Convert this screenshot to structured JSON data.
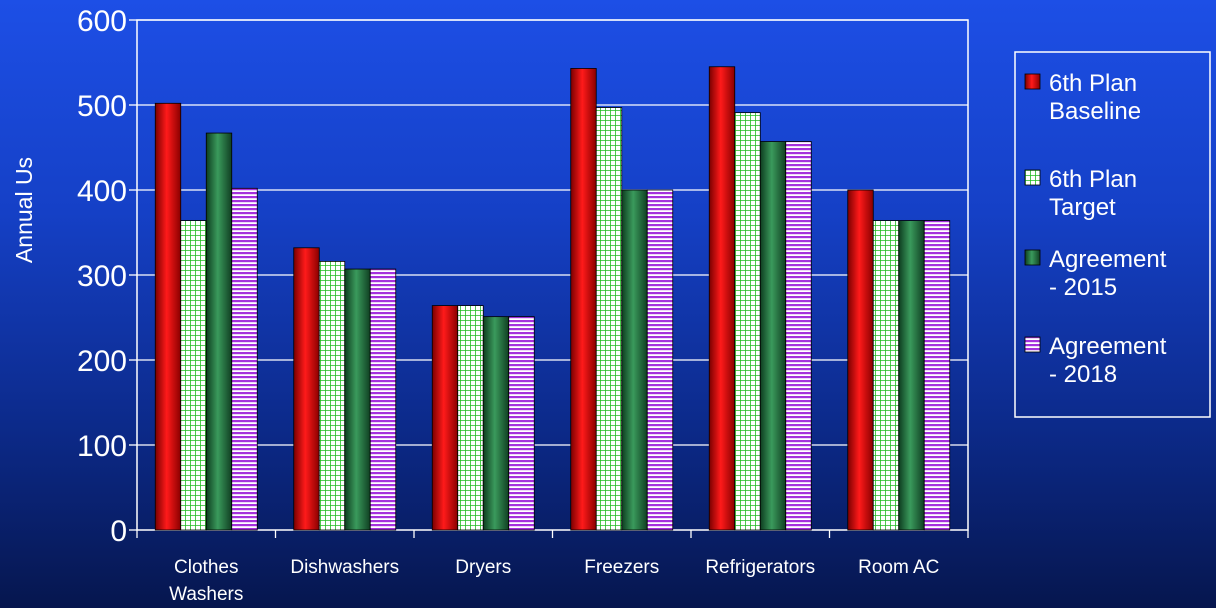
{
  "chart_data": {
    "type": "bar",
    "ylabel": "Annual Us",
    "xlabel": "",
    "ylim": [
      0,
      600
    ],
    "yticks": [
      0,
      100,
      200,
      300,
      400,
      500,
      600
    ],
    "grid": true,
    "legend_position": "right",
    "categories": [
      [
        "Clothes",
        "Washers"
      ],
      [
        "Dishwashers"
      ],
      [
        "Dryers"
      ],
      [
        "Freezers"
      ],
      [
        "Refrigerators"
      ],
      [
        "Room AC"
      ]
    ],
    "series": [
      {
        "name": [
          "6th Plan",
          "Baseline"
        ],
        "values": [
          502,
          332,
          264,
          543,
          545,
          400
        ],
        "color": "#e00000",
        "pattern": "solid"
      },
      {
        "name": [
          "6th Plan",
          "Target"
        ],
        "values": [
          364,
          316,
          264,
          497,
          491,
          364
        ],
        "color": "#33cc33",
        "pattern": "grid"
      },
      {
        "name": [
          "Agreement",
          "- 2015"
        ],
        "values": [
          467,
          307,
          251,
          400,
          457,
          364
        ],
        "color": "#1e6e3c",
        "pattern": "solid"
      },
      {
        "name": [
          "Agreement",
          "- 2018"
        ],
        "values": [
          402,
          307,
          251,
          400,
          457,
          364
        ],
        "color": "#b040e0",
        "pattern": "hstripe"
      }
    ]
  }
}
